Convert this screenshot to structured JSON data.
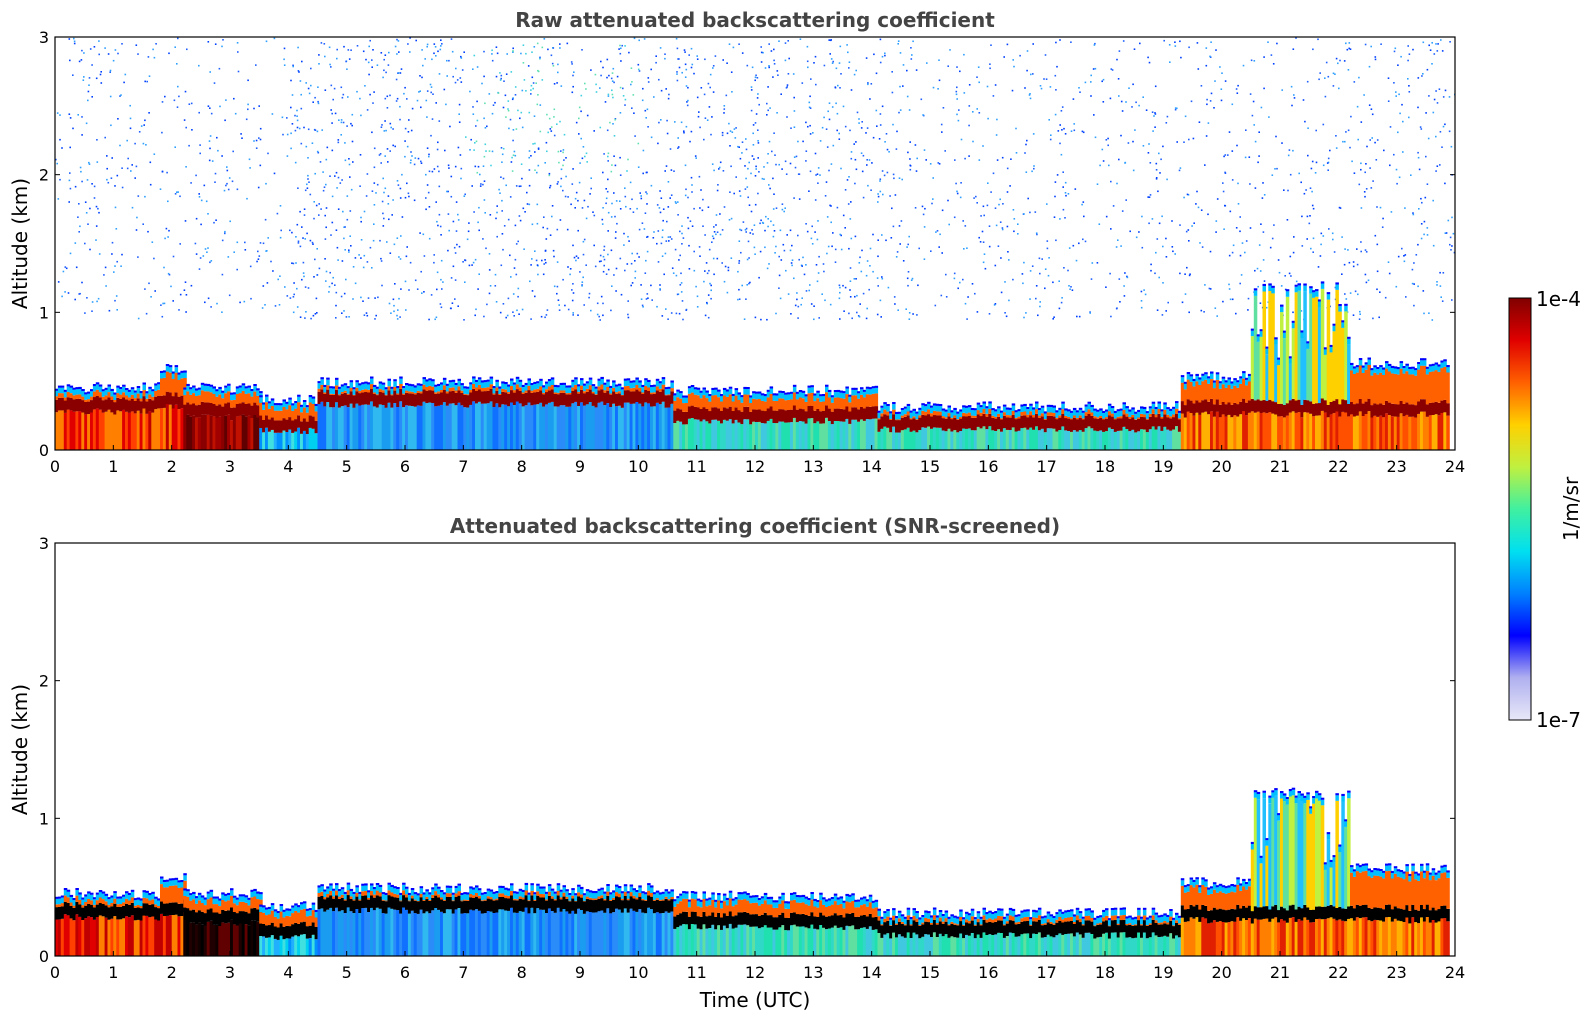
{
  "chart_data": [
    {
      "type": "heatmap",
      "title": "Raw attenuated backscattering coefficient",
      "xlabel": "",
      "ylabel": "Altitude (km)",
      "xlim": [
        0,
        24
      ],
      "ylim": [
        0,
        3
      ],
      "x_ticks": [
        "0",
        "1",
        "2",
        "3",
        "4",
        "5",
        "6",
        "7",
        "8",
        "9",
        "10",
        "11",
        "12",
        "13",
        "14",
        "15",
        "16",
        "17",
        "18",
        "19",
        "20",
        "21",
        "22",
        "23",
        "24"
      ],
      "y_ticks": [
        "0",
        "1",
        "2",
        "3"
      ],
      "background_noise": true,
      "noise_upper_km": 3,
      "boundary_layer_segments": [
        {
          "t0": 0.0,
          "t1": 1.8,
          "top_km": 0.42,
          "core_km": 0.32,
          "low": "red"
        },
        {
          "t0": 1.8,
          "t1": 2.2,
          "top_km": 0.55,
          "core_km": 0.35,
          "low": "red"
        },
        {
          "t0": 2.2,
          "t1": 3.5,
          "top_km": 0.42,
          "core_km": 0.28,
          "low": "darkred"
        },
        {
          "t0": 3.5,
          "t1": 4.5,
          "top_km": 0.33,
          "core_km": 0.18,
          "low": "cyan"
        },
        {
          "t0": 4.5,
          "t1": 10.6,
          "top_km": 0.46,
          "core_km": 0.37,
          "low": "blue"
        },
        {
          "t0": 10.6,
          "t1": 14.1,
          "top_km": 0.4,
          "core_km": 0.25,
          "low": "teal"
        },
        {
          "t0": 14.1,
          "t1": 19.3,
          "top_km": 0.28,
          "core_km": 0.19,
          "low": "teal"
        },
        {
          "t0": 19.3,
          "t1": 20.5,
          "top_km": 0.5,
          "core_km": 0.3,
          "low": "orange"
        },
        {
          "t0": 20.5,
          "t1": 22.2,
          "top_km": 1.15,
          "core_km": 0.3,
          "low": "orange"
        },
        {
          "t0": 22.2,
          "t1": 23.9,
          "top_km": 0.6,
          "core_km": 0.3,
          "low": "orange"
        }
      ]
    },
    {
      "type": "heatmap",
      "title": "Attenuated backscattering coefficient (SNR-screened)",
      "xlabel": "Time (UTC)",
      "ylabel": "Altitude (km)",
      "xlim": [
        0,
        24
      ],
      "ylim": [
        0,
        3
      ],
      "x_ticks": [
        "0",
        "1",
        "2",
        "3",
        "4",
        "5",
        "6",
        "7",
        "8",
        "9",
        "10",
        "11",
        "12",
        "13",
        "14",
        "15",
        "16",
        "17",
        "18",
        "19",
        "20",
        "21",
        "22",
        "23",
        "24"
      ],
      "y_ticks": [
        "0",
        "1",
        "2",
        "3"
      ],
      "background_noise": false,
      "boundary_layer_segments": [
        {
          "t0": 0.0,
          "t1": 1.8,
          "top_km": 0.42,
          "core_km": 0.32,
          "low": "red"
        },
        {
          "t0": 1.8,
          "t1": 2.2,
          "top_km": 0.55,
          "core_km": 0.35,
          "low": "red"
        },
        {
          "t0": 2.2,
          "t1": 3.5,
          "top_km": 0.42,
          "core_km": 0.28,
          "low": "black"
        },
        {
          "t0": 3.5,
          "t1": 4.5,
          "top_km": 0.33,
          "core_km": 0.18,
          "low": "cyan"
        },
        {
          "t0": 4.5,
          "t1": 10.6,
          "top_km": 0.46,
          "core_km": 0.37,
          "low": "blue"
        },
        {
          "t0": 10.6,
          "t1": 14.1,
          "top_km": 0.4,
          "core_km": 0.25,
          "low": "teal"
        },
        {
          "t0": 14.1,
          "t1": 19.3,
          "top_km": 0.28,
          "core_km": 0.19,
          "low": "teal"
        },
        {
          "t0": 19.3,
          "t1": 20.5,
          "top_km": 0.5,
          "core_km": 0.3,
          "low": "orange"
        },
        {
          "t0": 20.5,
          "t1": 22.2,
          "top_km": 1.15,
          "core_km": 0.3,
          "low": "orange"
        },
        {
          "t0": 22.2,
          "t1": 23.9,
          "top_km": 0.6,
          "core_km": 0.3,
          "low": "orange"
        }
      ]
    }
  ],
  "colorbar": {
    "label": "1/m/sr",
    "max_label": "1e-4",
    "min_label": "1e-7",
    "colormap": "jet",
    "colors": [
      "#e8e8f8",
      "#b0b0f0",
      "#0000ff",
      "#0080ff",
      "#00e0f0",
      "#40f0a0",
      "#c0f040",
      "#ffd000",
      "#ff6000",
      "#e00000",
      "#800000"
    ]
  }
}
